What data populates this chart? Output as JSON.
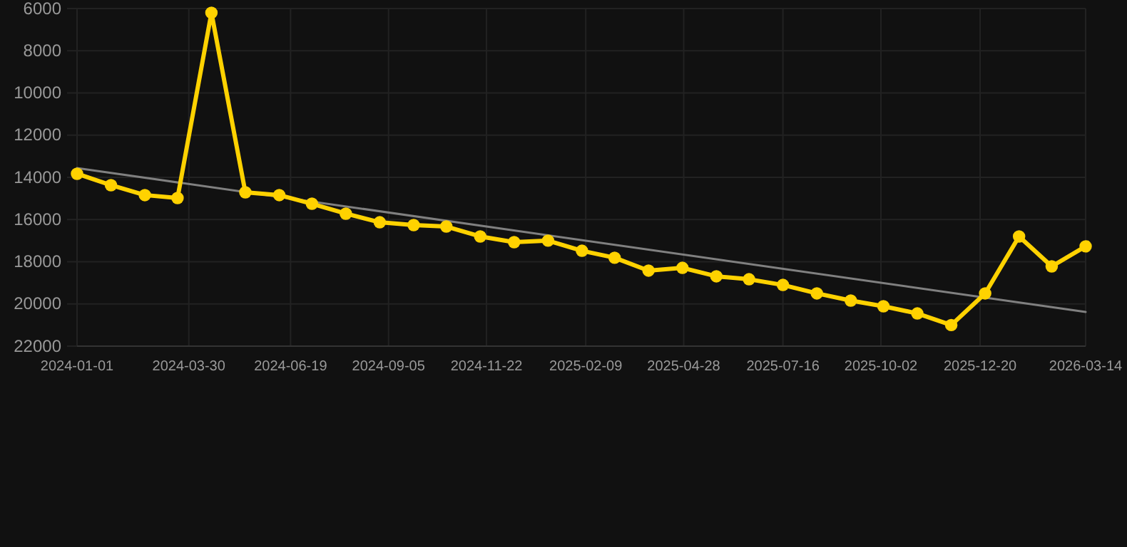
{
  "chart_data": {
    "type": "line",
    "x": [
      "2024-01-01",
      "2024-01-28",
      "2024-02-24",
      "2024-03-21",
      "2024-04-17",
      "2024-05-14",
      "2024-06-10",
      "2024-07-06",
      "2024-08-02",
      "2024-08-29",
      "2024-09-25",
      "2024-10-21",
      "2024-11-17",
      "2024-12-14",
      "2025-01-10",
      "2025-02-06",
      "2025-03-04",
      "2025-03-31",
      "2025-04-27",
      "2025-05-24",
      "2025-06-19",
      "2025-07-16",
      "2025-08-12",
      "2025-09-08",
      "2025-10-04",
      "2025-10-31",
      "2025-11-27",
      "2025-12-24",
      "2026-01-20",
      "2026-02-15",
      "2026-03-14"
    ],
    "series": [
      {
        "color": "#ffd200",
        "marker": "circle",
        "values": [
          13830,
          14370,
          14840,
          14980,
          6200,
          14710,
          14840,
          15250,
          15720,
          16130,
          16260,
          16330,
          16800,
          17070,
          17000,
          17480,
          17810,
          18420,
          18290,
          18690,
          18830,
          19100,
          19500,
          19840,
          20110,
          20450,
          21000,
          19500,
          16800,
          18220,
          17270
        ]
      },
      {
        "type": "line",
        "color": "#808080",
        "marker": "none",
        "x": [
          "2024-01-01",
          "2026-03-14"
        ],
        "values": [
          13560,
          20380
        ]
      }
    ],
    "xlim": [
      "2024-01-01",
      "2026-03-14"
    ],
    "xticks": [
      "2024-01-01",
      "2024-03-30",
      "2024-06-19",
      "2024-09-05",
      "2024-11-22",
      "2025-02-09",
      "2025-04-28",
      "2025-07-16",
      "2025-10-02",
      "2025-12-20",
      "2026-03-14"
    ],
    "ylim": [
      22000,
      6000
    ],
    "yticks": [
      6000,
      8000,
      10000,
      12000,
      14000,
      16000,
      18000,
      20000,
      22000
    ],
    "grid": true
  }
}
